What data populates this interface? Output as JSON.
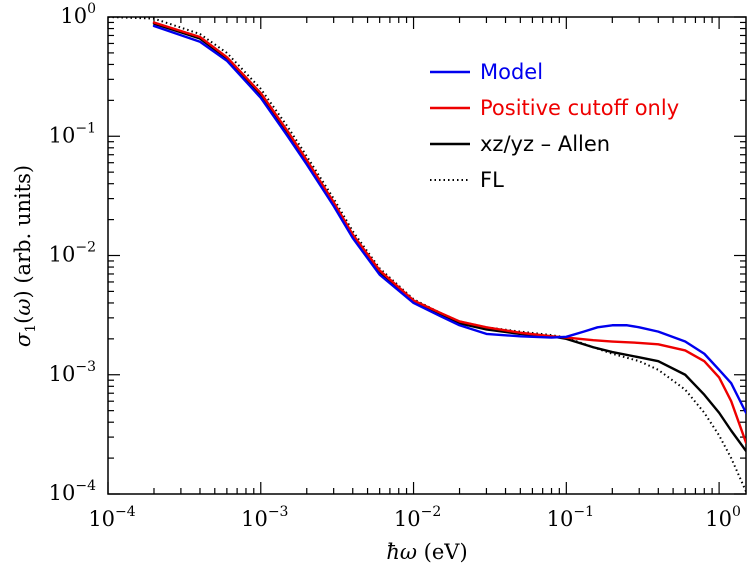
{
  "chart_data": {
    "type": "line",
    "xscale": "log",
    "yscale": "log",
    "xlim": [
      0.0001,
      1.5
    ],
    "ylim": [
      0.0001,
      1.0
    ],
    "xlabel": "ħω (eV)",
    "ylabel": "σ1(ω) (arb. units)",
    "grid": false,
    "legend_position": "top-right",
    "x_ticks": [
      {
        "base": "10",
        "exp": "−4",
        "value": 0.0001
      },
      {
        "base": "10",
        "exp": "−3",
        "value": 0.001
      },
      {
        "base": "10",
        "exp": "−2",
        "value": 0.01
      },
      {
        "base": "10",
        "exp": "−1",
        "value": 0.1
      },
      {
        "base": "10",
        "exp": "0",
        "value": 1
      }
    ],
    "y_ticks": [
      {
        "base": "10",
        "exp": "−4",
        "value": 0.0001
      },
      {
        "base": "10",
        "exp": "−3",
        "value": 0.001
      },
      {
        "base": "10",
        "exp": "−2",
        "value": 0.01
      },
      {
        "base": "10",
        "exp": "−1",
        "value": 0.1
      },
      {
        "base": "10",
        "exp": "0",
        "value": 1
      }
    ],
    "series": [
      {
        "name": "Model",
        "color": "#0000ee",
        "style": "solid",
        "x": [
          0.0002,
          0.0004,
          0.0006,
          0.001,
          0.0015,
          0.002,
          0.003,
          0.004,
          0.006,
          0.01,
          0.015,
          0.02,
          0.03,
          0.05,
          0.08,
          0.1,
          0.13,
          0.16,
          0.2,
          0.25,
          0.3,
          0.4,
          0.6,
          0.8,
          1.0,
          1.2,
          1.5
        ],
        "y": [
          0.84,
          0.62,
          0.43,
          0.21,
          0.1,
          0.058,
          0.026,
          0.014,
          0.0069,
          0.004,
          0.0031,
          0.0026,
          0.0022,
          0.0021,
          0.00205,
          0.00208,
          0.0023,
          0.0025,
          0.0026,
          0.0026,
          0.0025,
          0.0023,
          0.0019,
          0.0015,
          0.0011,
          0.00085,
          0.00048
        ]
      },
      {
        "name": "Positive cutoff only",
        "color": "#ee0000",
        "style": "solid",
        "x": [
          0.0002,
          0.0004,
          0.0006,
          0.001,
          0.0015,
          0.002,
          0.003,
          0.004,
          0.006,
          0.01,
          0.015,
          0.02,
          0.03,
          0.05,
          0.08,
          0.1,
          0.15,
          0.2,
          0.3,
          0.4,
          0.6,
          0.8,
          1.0,
          1.2,
          1.5
        ],
        "y": [
          0.9,
          0.68,
          0.46,
          0.23,
          0.11,
          0.063,
          0.028,
          0.015,
          0.0075,
          0.0042,
          0.0033,
          0.0028,
          0.0025,
          0.00225,
          0.0021,
          0.00205,
          0.00195,
          0.0019,
          0.00185,
          0.0018,
          0.0016,
          0.0013,
          0.00095,
          0.0006,
          0.00027
        ]
      },
      {
        "name": "xz/yz – Allen",
        "color": "#000000",
        "style": "solid",
        "x": [
          0.0002,
          0.0004,
          0.0006,
          0.001,
          0.0015,
          0.002,
          0.003,
          0.004,
          0.006,
          0.01,
          0.015,
          0.02,
          0.03,
          0.05,
          0.08,
          0.1,
          0.15,
          0.2,
          0.3,
          0.4,
          0.6,
          0.8,
          1.0,
          1.2,
          1.5
        ],
        "y": [
          0.88,
          0.66,
          0.45,
          0.22,
          0.105,
          0.06,
          0.027,
          0.0145,
          0.0072,
          0.0041,
          0.0032,
          0.0027,
          0.0024,
          0.0022,
          0.0021,
          0.002,
          0.0017,
          0.00155,
          0.0014,
          0.0013,
          0.001,
          0.00068,
          0.00048,
          0.00034,
          0.00023
        ]
      },
      {
        "name": "FL",
        "color": "#000000",
        "style": "dotted",
        "x": [
          0.0001,
          0.0002,
          0.0004,
          0.0006,
          0.001,
          0.0015,
          0.002,
          0.003,
          0.004,
          0.006,
          0.01,
          0.015,
          0.02,
          0.03,
          0.05,
          0.08,
          0.1,
          0.15,
          0.2,
          0.3,
          0.4,
          0.6,
          0.8,
          1.0,
          1.2,
          1.5
        ],
        "y": [
          1.0,
          0.97,
          0.72,
          0.5,
          0.25,
          0.12,
          0.068,
          0.03,
          0.016,
          0.0078,
          0.0043,
          0.0033,
          0.0028,
          0.0025,
          0.0023,
          0.00215,
          0.00205,
          0.0017,
          0.0015,
          0.0013,
          0.0011,
          0.00075,
          0.00048,
          0.00031,
          0.0002,
          0.000105
        ]
      }
    ]
  }
}
